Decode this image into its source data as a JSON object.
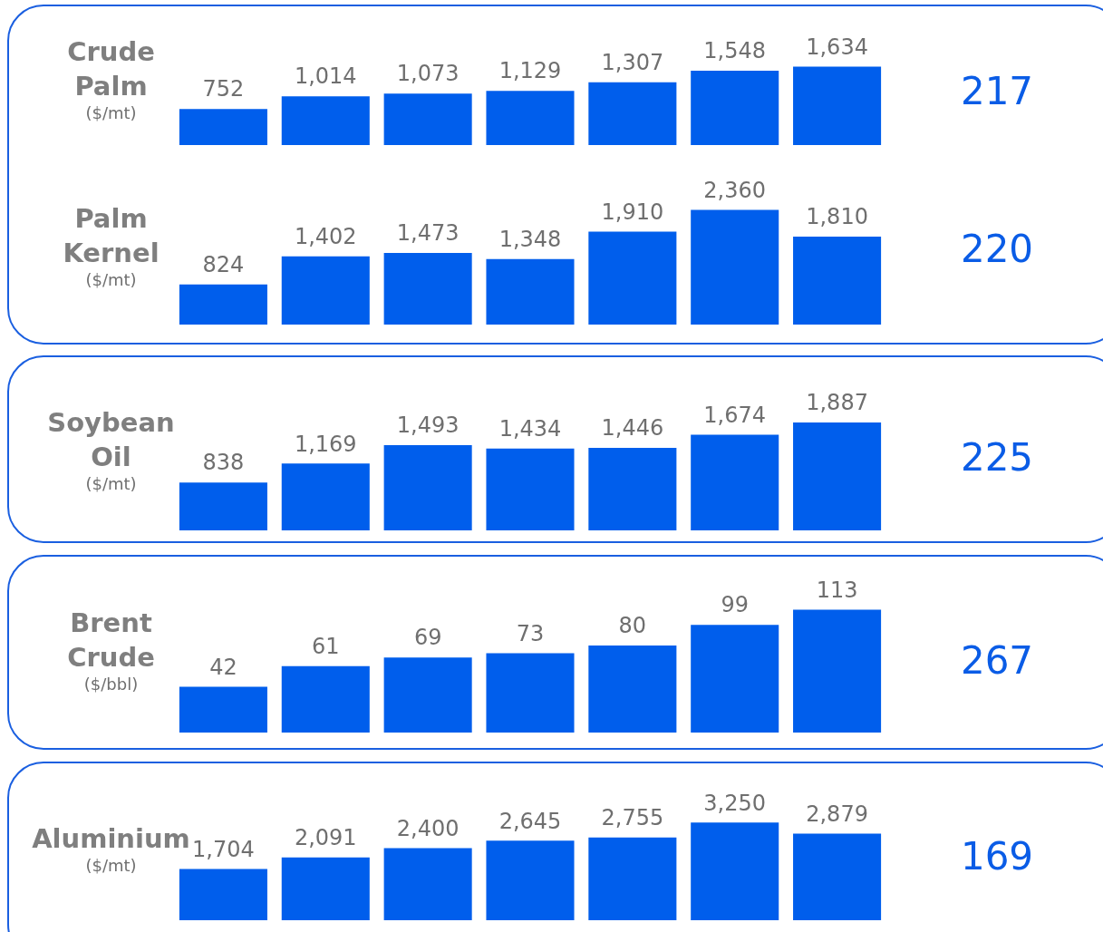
{
  "chart_data": [
    {
      "type": "bar",
      "title": "Crude Palm",
      "subtitle": "($/mt)",
      "categories": [
        null,
        null,
        null,
        null,
        null,
        null,
        null
      ],
      "values": [
        752,
        1014,
        1073,
        1129,
        1307,
        1548,
        1634
      ],
      "value_labels": [
        "752",
        "1,014",
        "1,073",
        "1,129",
        "1,307",
        "1,548",
        "1,634"
      ],
      "color": "#005eec",
      "tick_labels": false,
      "annotations": [
        "217"
      ]
    },
    {
      "type": "bar",
      "title": "Palm Kernel",
      "subtitle": "($/mt)",
      "categories": [
        null,
        null,
        null,
        null,
        null,
        null,
        null
      ],
      "values": [
        824,
        1402,
        1473,
        1348,
        1910,
        2360,
        1810
      ],
      "value_labels": [
        "824",
        "1,402",
        "1,473",
        "1,348",
        "1,910",
        "2,360",
        "1,810"
      ],
      "color": "#005eec",
      "tick_labels": false,
      "annotations": [
        "220"
      ]
    },
    {
      "type": "bar",
      "title": "Soybean Oil",
      "subtitle": "($/mt)",
      "categories": [
        null,
        null,
        null,
        null,
        null,
        null,
        null
      ],
      "values": [
        838,
        1169,
        1493,
        1434,
        1446,
        1674,
        1887
      ],
      "value_labels": [
        "838",
        "1,169",
        "1,493",
        "1,434",
        "1,446",
        "1,674",
        "1,887"
      ],
      "color": "#005eec",
      "tick_labels": false,
      "annotations": [
        "225"
      ]
    },
    {
      "type": "bar",
      "title": "Brent Crude",
      "subtitle": "($/bbl)",
      "categories": [
        null,
        null,
        null,
        null,
        null,
        null,
        null
      ],
      "values": [
        42,
        61,
        69,
        73,
        80,
        99,
        113
      ],
      "data_labels": true,
      "color": "#005eec",
      "tick_labels": false,
      "annotations": [
        "267"
      ]
    },
    {
      "type": "bar",
      "title": "Aluminium",
      "subtitle": "($/mt)",
      "categories": [
        null,
        null,
        null,
        null,
        null,
        null,
        null
      ],
      "values": [
        1704,
        2091,
        2400,
        2645,
        2755,
        3250,
        2879
      ],
      "value_labels": [
        "1,704",
        "2,091",
        "2,400",
        "2,645",
        "2,755",
        "3,250",
        "2,879"
      ],
      "color": "#005eec",
      "tick_labels": false,
      "annotations": [
        "169"
      ]
    }
  ]
}
